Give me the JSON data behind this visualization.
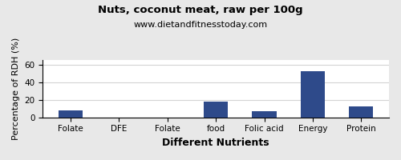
{
  "title": "Nuts, coconut meat, raw per 100g",
  "subtitle": "www.dietandfitnesstoday.com",
  "xlabel": "Different Nutrients",
  "ylabel": "Percentage of RDH (%)",
  "categories": [
    "Folate",
    "DFE",
    "Folate",
    "food",
    "Folic acid",
    "Energy",
    "Protein"
  ],
  "values": [
    8,
    0,
    0,
    18,
    7,
    52,
    12
  ],
  "bar_color": "#2e4a8a",
  "ylim": [
    0,
    65
  ],
  "yticks": [
    0,
    20,
    40,
    60
  ],
  "background_color": "#e8e8e8",
  "plot_bg_color": "#ffffff",
  "title_fontsize": 9.5,
  "subtitle_fontsize": 8,
  "axis_label_fontsize": 8,
  "tick_fontsize": 7.5,
  "xlabel_fontsize": 9
}
